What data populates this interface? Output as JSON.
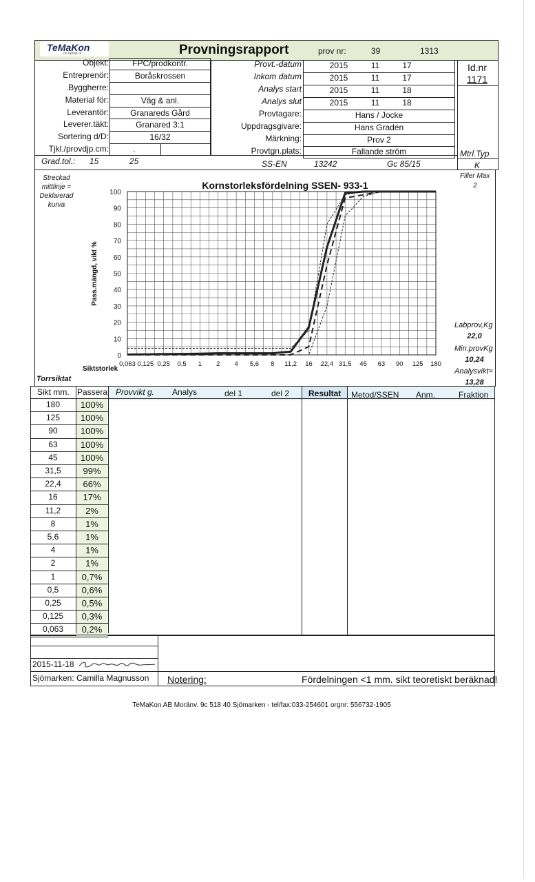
{
  "header": {
    "logo_text": "TeMaKon",
    "logo_tagline": "on behalf of",
    "title": "Provningsrapport",
    "prov_nr_label": "prov nr:",
    "prov_nr_a": "39",
    "prov_nr_b": "1313"
  },
  "left_fields": [
    {
      "label": "Objekt:",
      "value": "FPC/prodkontr."
    },
    {
      "label": "Entreprenör:",
      "value": "Boråskrossen"
    },
    {
      "label": ".Byggherre:",
      "value": ""
    },
    {
      "label": "Material för:",
      "value": "Väg & anl."
    },
    {
      "label": "Leverantör:",
      "value": "Granareds Gård"
    },
    {
      "label": "Leverer.täkt:",
      "value": "Granared 3:1"
    },
    {
      "label": "Sortering d/D:",
      "value": "16/32"
    },
    {
      "label": "Tjkl./provdjp.cm:",
      "value": ""
    }
  ],
  "tjkl_small": ".",
  "right_fields": {
    "provt_datum": {
      "label": "Provt.-datum",
      "y": "2015",
      "m": "11",
      "d": "17"
    },
    "inkom_datum": {
      "label": "Inkom datum",
      "y": "2015",
      "m": "11",
      "d": "17"
    },
    "analys_start": {
      "label": "Analys start",
      "y": "2015",
      "m": "11",
      "d": "18"
    },
    "analys_slut": {
      "label": "Analys slut",
      "y": "2015",
      "m": "11",
      "d": "18"
    },
    "provtagare": {
      "label": "Provtagare:",
      "value": "Hans / Jocke"
    },
    "uppdragsgivare": {
      "label": "Uppdragsgivare:",
      "value": "Hans Gradén"
    },
    "markning": {
      "label": "Märkning:",
      "value": "Prov 2"
    },
    "provtgn_plats": {
      "label": "Provtgn.plats:",
      "value": "Fallande ström"
    }
  },
  "id": {
    "label": "Id.nr",
    "value": "1171"
  },
  "grad": {
    "label": "Grad.tol.:",
    "a": "15",
    "b": "25",
    "ssen": "SS-EN",
    "num": "13242",
    "gc": "Gc 85/15"
  },
  "mtrl": {
    "label": "Mtrl.Typ",
    "value": "K"
  },
  "filler": {
    "label": "Filler Max",
    "value": "2"
  },
  "legend_note": {
    "l1": "Streckad",
    "l2": "mittlinje =",
    "l3": "Deklarerad",
    "l4": "kurva"
  },
  "side_stats": {
    "labprov_label": "Labprov,Kg",
    "labprov_value": "22,0",
    "minprov_label": "Min.provKg",
    "minprov_value": "10,24",
    "analysvikt_label": "Analysvikt=",
    "analysvikt_value": "13,28"
  },
  "siktstorlek_label": "Siktstorlek",
  "torrsiktat_label": "Torrsiktat",
  "table_header": {
    "sikt": "Sikt mm.",
    "passerat": "Passerat",
    "provvikt": "Provvikt g.",
    "analys": "Analys",
    "del1": "del 1",
    "del2": "del 2",
    "resultat": "Resultat",
    "metod": "Metod/SSEN",
    "anm": "Anm.",
    "fraktion": "Fraktion"
  },
  "sieve_rows": [
    {
      "mm": "180",
      "pass": "100%"
    },
    {
      "mm": "125",
      "pass": "100%"
    },
    {
      "mm": "90",
      "pass": "100%"
    },
    {
      "mm": "63",
      "pass": "100%"
    },
    {
      "mm": "45",
      "pass": "100%"
    },
    {
      "mm": "31,5",
      "pass": "99%"
    },
    {
      "mm": "22,4",
      "pass": "66%"
    },
    {
      "mm": "16",
      "pass": "17%"
    },
    {
      "mm": "11,2",
      "pass": "2%"
    },
    {
      "mm": "8",
      "pass": "1%"
    },
    {
      "mm": "5,6",
      "pass": "1%"
    },
    {
      "mm": "4",
      "pass": "1%"
    },
    {
      "mm": "2",
      "pass": "1%"
    },
    {
      "mm": "1",
      "pass": "0,7%"
    },
    {
      "mm": "0,5",
      "pass": "0,6%"
    },
    {
      "mm": "0,25",
      "pass": "0,5%"
    },
    {
      "mm": "0,125",
      "pass": "0,3%"
    },
    {
      "mm": "0,063",
      "pass": "0,2%"
    }
  ],
  "footer": {
    "date": "2015-11-18",
    "signer": "Sjömarken: Camilla Magnusson",
    "notering_label": "Notering:",
    "notering_text": "Fördelningen <1 mm. sikt teoretiskt beräknad!",
    "company_line": "TeMaKon AB Moränv. 9c 518 40 Sjömarken - tel/fax:033-254601  orgnr: 556732-1905"
  },
  "chart_data": {
    "type": "line",
    "title": "Kornstorleksfördelning SSEN- 933-1",
    "xlabel": "Siktstorlek",
    "ylabel": "Pass.mängd, vikt %",
    "x_scale": "categorical sieve sizes",
    "x_ticks": [
      "0,063",
      "0,125",
      "0,25",
      "0,5",
      "1",
      "2",
      "4",
      "5,6",
      "8",
      "11,2",
      "16",
      "22,4",
      "31,5",
      "45",
      "63",
      "90",
      "125",
      "180"
    ],
    "y_ticks": [
      "0",
      "10",
      "20",
      "30",
      "40",
      "50",
      "60",
      "70",
      "80",
      "90",
      "100"
    ],
    "ylim": [
      0,
      100
    ],
    "grid": true,
    "series": [
      {
        "style": "solid",
        "x": [
          "0,063",
          "0,125",
          "0,25",
          "0,5",
          "1",
          "2",
          "4",
          "5,6",
          "8",
          "11,2",
          "16",
          "22,4",
          "31,5",
          "45",
          "63",
          "90",
          "125",
          "180"
        ],
        "y": [
          0.2,
          0.3,
          0.5,
          0.6,
          0.7,
          1,
          1,
          1,
          1,
          2,
          17,
          66,
          99,
          100,
          100,
          100,
          100,
          100
        ]
      },
      {
        "style": "dashed-center",
        "x": [
          "0,063",
          "8",
          "11,2",
          "16",
          "22,4",
          "31,5",
          "45",
          "63",
          "180"
        ],
        "y": [
          0,
          0,
          0,
          5,
          55,
          96,
          98,
          100,
          100
        ]
      },
      {
        "style": "dotted-upper",
        "x": [
          "0,063",
          "8",
          "11,2",
          "16",
          "22,4",
          "31,5",
          "45",
          "180"
        ],
        "y": [
          4,
          4,
          4,
          15,
          80,
          98,
          100,
          100
        ]
      },
      {
        "style": "dotted-lower",
        "x": [
          "0,063",
          "11,2",
          "16",
          "22,4",
          "31,5",
          "45",
          "63",
          "180"
        ],
        "y": [
          0,
          0,
          0,
          30,
          85,
          97,
          100,
          100
        ]
      }
    ]
  }
}
